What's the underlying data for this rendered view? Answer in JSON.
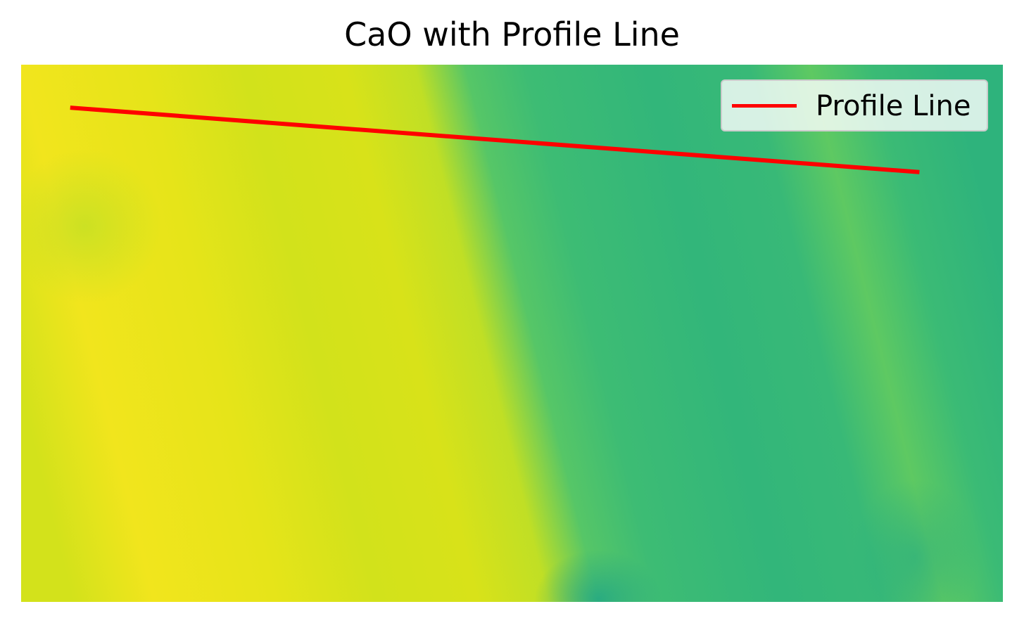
{
  "chart_data": {
    "type": "heatmap",
    "title": "CaO with Profile Line",
    "xlabel": "",
    "ylabel": "",
    "axes_visible": false,
    "grid": false,
    "colormap": "viridis",
    "legend_placement": "top-right",
    "legend": [
      {
        "label": "Profile Line",
        "color": "#ff0000"
      }
    ],
    "profile_line": {
      "start": [
        0.05,
        0.08
      ],
      "end": [
        0.915,
        0.2
      ]
    },
    "field": {
      "description_colors": [
        "#26a784",
        "#3bbb75",
        "#6ccd59",
        "#c6df22",
        "#d8e21a",
        "#f5e31e"
      ]
    }
  }
}
